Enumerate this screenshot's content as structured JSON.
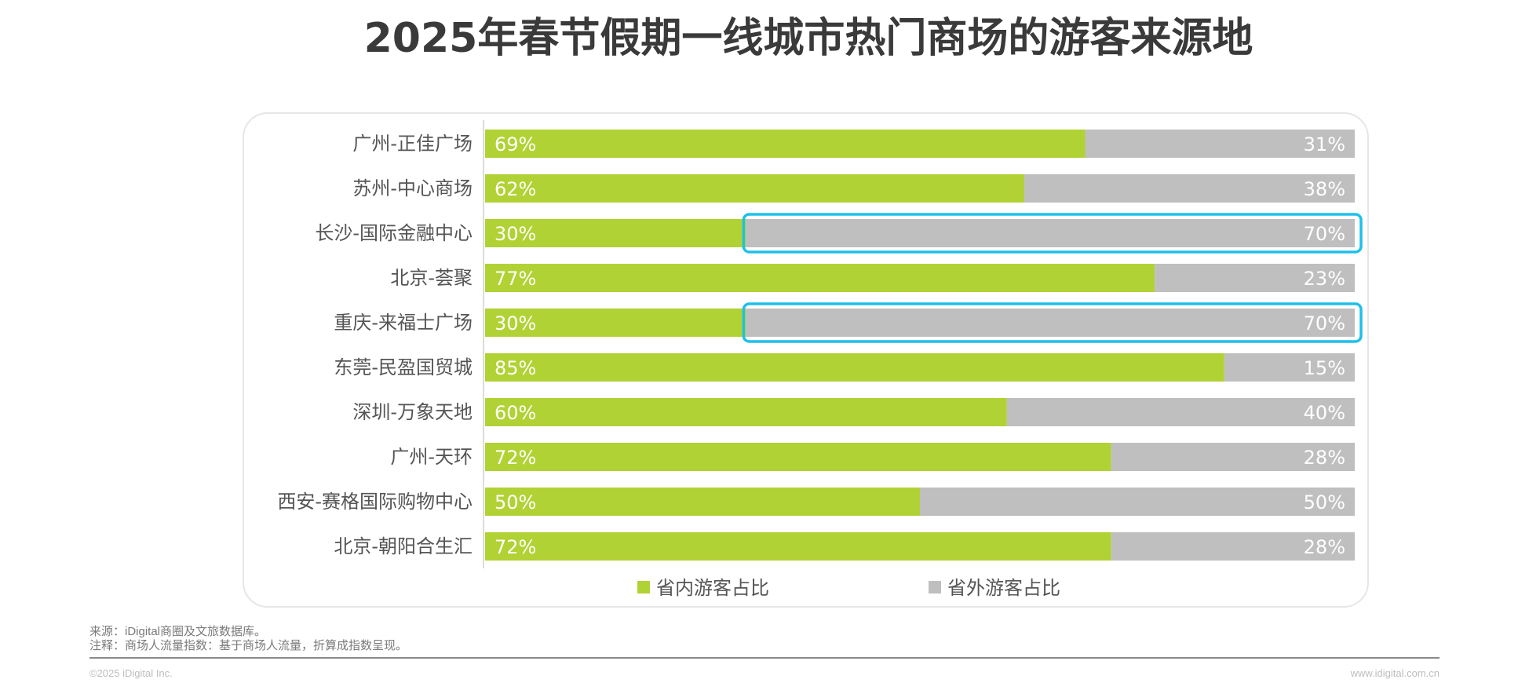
{
  "page": {
    "title": "2025年春节假期一线城市热门商场的游客来源地",
    "source_note": "来源：iDigital商圈及文旅数据库。",
    "remark_note": "注释：商场人流量指数：基于商场人流量，折算成指数呈现。",
    "copyright": "©2025 iDigital Inc.",
    "website": "www.idigital.com.cn"
  },
  "chart_data": {
    "type": "bar",
    "orientation": "horizontal",
    "stacked": true,
    "categories": [
      "广州-正佳广场",
      "苏州-中心商场",
      "长沙-国际金融中心",
      "北京-荟聚",
      "重庆-来福士广场",
      "东莞-民盈国贸城",
      "深圳-万象天地",
      "广州-天环",
      "西安-赛格国际购物中心",
      "北京-朝阳合生汇"
    ],
    "series": [
      {
        "name": "省内游客占比",
        "values": [
          69,
          62,
          30,
          77,
          30,
          85,
          60,
          72,
          50,
          72
        ],
        "labels": [
          "69%",
          "62%",
          "30%",
          "77%",
          "30%",
          "85%",
          "60%",
          "72%",
          "50%",
          "72%"
        ]
      },
      {
        "name": "省外游客占比",
        "values": [
          31,
          38,
          70,
          23,
          70,
          15,
          40,
          28,
          50,
          28
        ],
        "labels": [
          "31%",
          "38%",
          "70%",
          "23%",
          "70%",
          "15%",
          "40%",
          "28%",
          "50%",
          "28%"
        ]
      }
    ],
    "xlim": [
      0,
      100
    ],
    "highlighted_rows": [
      2,
      4
    ],
    "legend_position": "bottom",
    "grid": false,
    "colors": {
      "in_province": "#b1d234",
      "out_province": "#bfbfbf",
      "highlight": "#1fc0ea",
      "label": "#ffffff"
    }
  }
}
